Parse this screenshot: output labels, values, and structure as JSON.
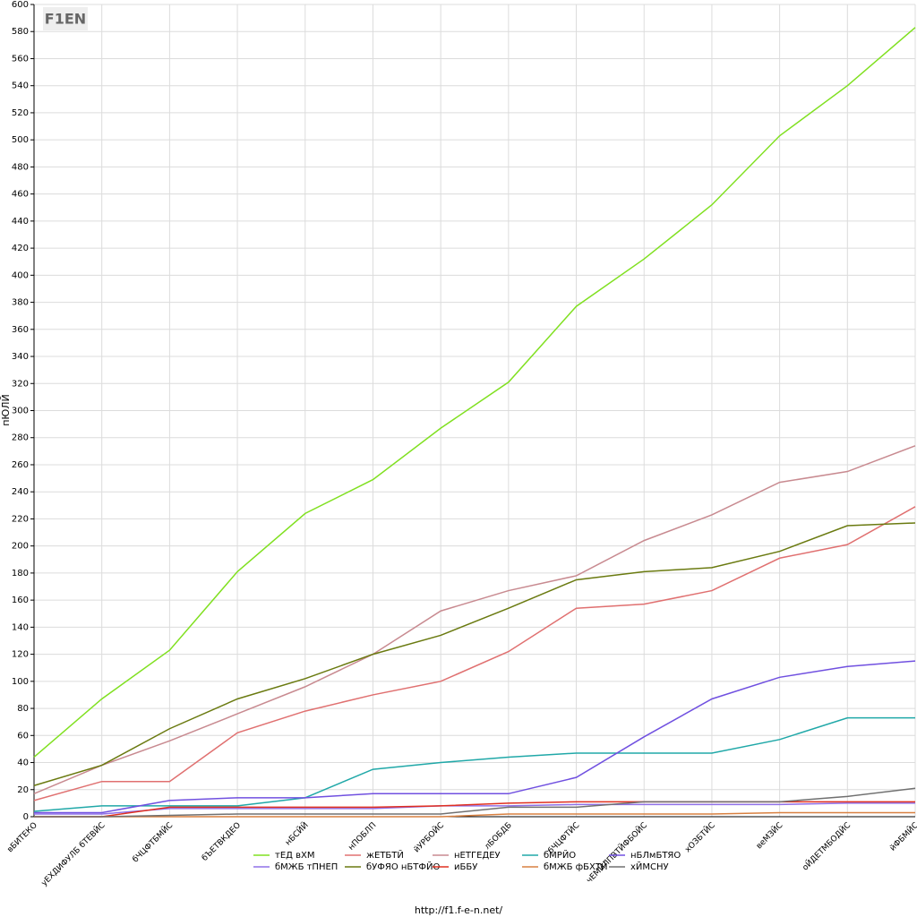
{
  "chart_data": {
    "type": "line",
    "logo": "F1EN",
    "y_label": "пЮЛЙ",
    "footer": "http://f1.f-e-n.net/",
    "categories": [
      "вБИТЕКО",
      "уЕХДИФУЛБ бТЕВЙС",
      "бЧЦФТБМЙС",
      "бЪЕТВКДЕО",
      "нБСЙЙ",
      "нПОБЛП",
      "йУРБОЙС",
      "лБОБДБ",
      "бЧЦФТЙС",
      "чЕМЙЛПВТЙФБОЙС",
      "хОЗБТЙС",
      "веМЗЙС",
      "оЙДЕТМБОДЙС",
      "йФБМЙС"
    ],
    "ylim": [
      0,
      600
    ],
    "yticks": [
      0,
      20,
      40,
      60,
      80,
      100,
      120,
      140,
      160,
      180,
      200,
      220,
      240,
      260,
      280,
      300,
      320,
      340,
      360,
      380,
      400,
      420,
      440,
      460,
      480,
      500,
      520,
      540,
      560,
      580,
      600
    ],
    "grid": true,
    "legend": "bottom",
    "series": [
      {
        "name": "тЕД вХМ",
        "color": "#80e020",
        "values": [
          44,
          87,
          123,
          181,
          224,
          249,
          287,
          321,
          377,
          412,
          452,
          503,
          540,
          583
        ]
      },
      {
        "name": "жЕТБТЙ",
        "color": "#e07070",
        "values": [
          12,
          26,
          26,
          62,
          78,
          90,
          100,
          122,
          154,
          157,
          167,
          191,
          201,
          229
        ]
      },
      {
        "name": "нЕТГЕДЕУ",
        "color": "#c88a90",
        "values": [
          17,
          38,
          56,
          76,
          96,
          120,
          152,
          167,
          178,
          204,
          223,
          247,
          255,
          274
        ]
      },
      {
        "name": "бМРЙО",
        "color": "#20a8a8",
        "values": [
          4,
          8,
          8,
          8,
          14,
          35,
          40,
          44,
          47,
          47,
          47,
          57,
          73,
          73
        ]
      },
      {
        "name": "нБЛмБТЯО",
        "color": "#7050e0",
        "values": [
          3,
          3,
          12,
          14,
          14,
          17,
          17,
          17,
          29,
          59,
          87,
          103,
          111,
          115
        ]
      },
      {
        "name": "бМЖБ тПНЕП",
        "color": "#9070e8",
        "values": [
          2,
          2,
          6,
          6,
          6,
          6,
          8,
          8,
          9,
          9,
          9,
          9,
          10,
          10
        ]
      },
      {
        "name": "бУФЯО нБТФЙО",
        "color": "#6a7a10",
        "values": [
          23,
          38,
          65,
          87,
          102,
          120,
          134,
          154,
          175,
          181,
          184,
          196,
          215,
          217
        ]
      },
      {
        "name": "иББУ",
        "color": "#e03020",
        "values": [
          0,
          0,
          7,
          7,
          7,
          7,
          8,
          10,
          11,
          11,
          11,
          11,
          11,
          11
        ]
      },
      {
        "name": "бМЖБ фБХТЙ",
        "color": "#d88040",
        "values": [
          0,
          0,
          0,
          0,
          0,
          0,
          0,
          2,
          2,
          2,
          2,
          3,
          3,
          3
        ]
      },
      {
        "name": "хЙМСНУ",
        "color": "#707070",
        "values": [
          0,
          0,
          1,
          2,
          2,
          2,
          2,
          7,
          7,
          11,
          11,
          11,
          15,
          21
        ]
      }
    ]
  }
}
